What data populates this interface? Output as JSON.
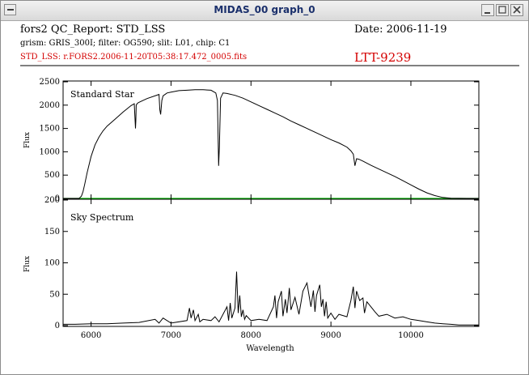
{
  "window": {
    "title": "MIDAS_00 graph_0"
  },
  "header": {
    "report": "fors2 QC_Report: STD_LSS",
    "date": "Date: 2006-11-19",
    "setup": "grism: GRIS_300I; filter: OG590; slit: L01, chip: C1",
    "file": "STD_LSS: r.FORS2.2006-11-20T05:38:17.472_0005.fits",
    "target": "LTT-9239"
  },
  "colors": {
    "text_red": "#d40000",
    "zero_line": "#00b000"
  },
  "chart_data": [
    {
      "type": "line",
      "title": "",
      "annotation": "Standard Star",
      "xlabel": "",
      "ylabel": "Flux",
      "xlim": [
        5650,
        10850
      ],
      "ylim": [
        0,
        2500
      ],
      "yticks": [
        0,
        500,
        1000,
        1500,
        2000,
        2500
      ],
      "grid": false,
      "zero_line": true,
      "x": [
        5650,
        5850,
        5880,
        5900,
        5920,
        5950,
        6000,
        6050,
        6100,
        6150,
        6200,
        6300,
        6400,
        6500,
        6540,
        6555,
        6560,
        6565,
        6580,
        6600,
        6700,
        6850,
        6860,
        6870,
        6885,
        6900,
        6950,
        7000,
        7100,
        7200,
        7300,
        7400,
        7500,
        7560,
        7580,
        7595,
        7605,
        7620,
        7650,
        7700,
        7800,
        7900,
        8000,
        8100,
        8200,
        8300,
        8400,
        8500,
        8600,
        8700,
        8800,
        8900,
        9000,
        9100,
        9200,
        9250,
        9280,
        9300,
        9320,
        9350,
        9400,
        9500,
        9600,
        9700,
        9800,
        9900,
        10000,
        10100,
        10200,
        10300,
        10400,
        10500,
        10600,
        10700,
        10850
      ],
      "values": [
        0,
        0,
        50,
        150,
        300,
        550,
        900,
        1150,
        1320,
        1450,
        1550,
        1700,
        1850,
        1990,
        2030,
        1500,
        1650,
        2000,
        2040,
        2060,
        2140,
        2230,
        1900,
        1800,
        2100,
        2200,
        2260,
        2280,
        2310,
        2320,
        2330,
        2330,
        2320,
        2260,
        2100,
        700,
        1100,
        2150,
        2260,
        2250,
        2210,
        2150,
        2070,
        1990,
        1910,
        1830,
        1750,
        1660,
        1580,
        1500,
        1420,
        1340,
        1260,
        1190,
        1100,
        1020,
        950,
        700,
        850,
        840,
        800,
        710,
        630,
        550,
        470,
        380,
        290,
        200,
        120,
        60,
        20,
        5,
        2,
        0,
        0
      ]
    },
    {
      "type": "line",
      "title": "",
      "annotation": "Sky Spectrum",
      "xlabel": "Wavelength",
      "ylabel": "Flux",
      "xlim": [
        5650,
        10850
      ],
      "ylim": [
        0,
        200
      ],
      "yticks": [
        0,
        50,
        100,
        150,
        200
      ],
      "xticks": [
        6000,
        7000,
        8000,
        9000,
        10000
      ],
      "grid": false,
      "x": [
        5650,
        5800,
        6000,
        6200,
        6400,
        6600,
        6800,
        6850,
        6900,
        7000,
        7200,
        7230,
        7250,
        7280,
        7300,
        7340,
        7360,
        7400,
        7500,
        7550,
        7600,
        7700,
        7720,
        7740,
        7760,
        7800,
        7820,
        7840,
        7860,
        7880,
        7900,
        7920,
        7940,
        8000,
        8100,
        8200,
        8280,
        8300,
        8320,
        8340,
        8380,
        8400,
        8430,
        8450,
        8480,
        8500,
        8550,
        8600,
        8650,
        8700,
        8750,
        8780,
        8800,
        8820,
        8860,
        8880,
        8900,
        8920,
        8940,
        8960,
        9000,
        9050,
        9100,
        9200,
        9250,
        9280,
        9300,
        9320,
        9360,
        9400,
        9420,
        9450,
        9500,
        9550,
        9600,
        9700,
        9800,
        9900,
        10000,
        10100,
        10200,
        10300,
        10400,
        10500,
        10600,
        10850
      ],
      "values": [
        2,
        2,
        3,
        3,
        4,
        5,
        10,
        4,
        12,
        4,
        8,
        28,
        12,
        25,
        8,
        18,
        6,
        10,
        8,
        14,
        6,
        30,
        8,
        36,
        12,
        28,
        86,
        20,
        48,
        14,
        25,
        10,
        16,
        8,
        10,
        8,
        30,
        48,
        12,
        38,
        55,
        15,
        42,
        20,
        60,
        25,
        45,
        18,
        55,
        68,
        30,
        56,
        22,
        48,
        65,
        30,
        42,
        15,
        38,
        12,
        20,
        10,
        18,
        14,
        40,
        62,
        28,
        55,
        40,
        44,
        20,
        38,
        30,
        22,
        15,
        18,
        12,
        14,
        10,
        8,
        6,
        4,
        3,
        2,
        1,
        1
      ]
    }
  ],
  "tick_labels": {
    "top_y": [
      "2500",
      "2000",
      "1500",
      "1000",
      "500",
      "0"
    ],
    "bottom_y": [
      "200",
      "150",
      "100",
      "50",
      "0"
    ],
    "x": [
      "6000",
      "7000",
      "8000",
      "9000",
      "10000"
    ]
  }
}
